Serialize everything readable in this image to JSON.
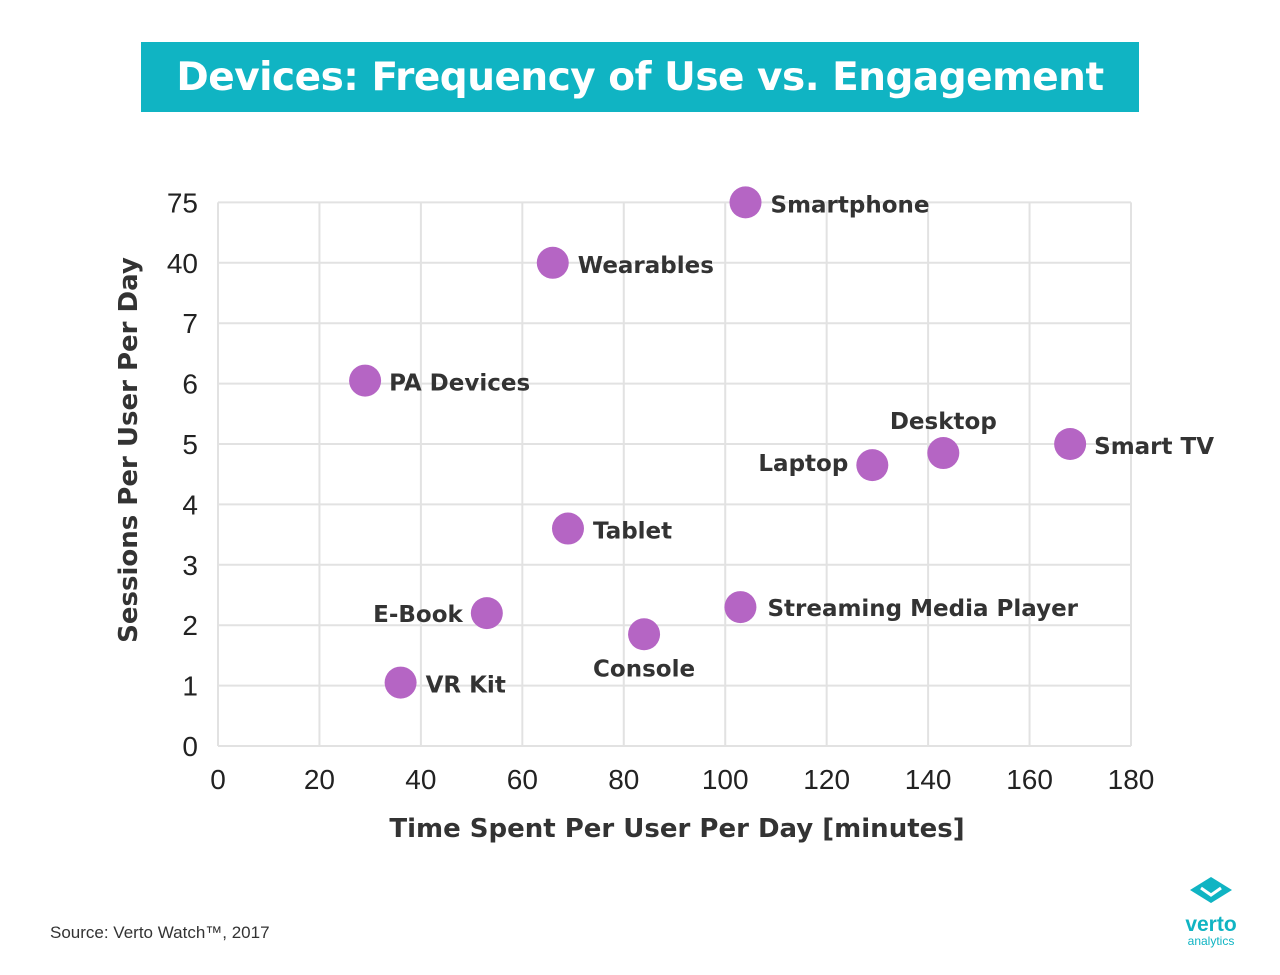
{
  "title": "Devices: Frequency of Use vs. Engagement",
  "source": "Source: Verto Watch™, 2017",
  "logo": {
    "word": "verto",
    "sub": "analytics",
    "icon": "verto-diamond-icon"
  },
  "colors": {
    "banner": "#10b4c3",
    "point": "#b565c4",
    "grid": "#e2e2e2",
    "text": "#333333"
  },
  "chart_data": {
    "type": "scatter",
    "title": "Devices: Frequency of Use vs. Engagement",
    "xlabel": "Time Spent Per User Per Day [minutes]",
    "ylabel": "Sessions Per User Per Day",
    "xlim": [
      0,
      180
    ],
    "x_ticks": [
      "0",
      "20",
      "40",
      "60",
      "80",
      "100",
      "120",
      "140",
      "160",
      "180"
    ],
    "y_ticks": [
      "0",
      "1",
      "2",
      "3",
      "4",
      "5",
      "6",
      "7",
      "40",
      "75"
    ],
    "y_scale": "broken axis: 0–7 linear, then 40 and 75 at one gridline step each",
    "grid": true,
    "points": [
      {
        "label": "Smartphone",
        "x": 104,
        "y": 75
      },
      {
        "label": "Wearables",
        "x": 66,
        "y": 40
      },
      {
        "label": "PA Devices",
        "x": 29,
        "y": 6.05
      },
      {
        "label": "Desktop",
        "x": 143,
        "y": 4.85
      },
      {
        "label": "Laptop",
        "x": 129,
        "y": 4.65
      },
      {
        "label": "Smart TV",
        "x": 168,
        "y": 5.0
      },
      {
        "label": "Tablet",
        "x": 69,
        "y": 3.6
      },
      {
        "label": "Streaming Media Player",
        "x": 103,
        "y": 2.3
      },
      {
        "label": "E-Book",
        "x": 53,
        "y": 2.2
      },
      {
        "label": "Console",
        "x": 84,
        "y": 1.85
      },
      {
        "label": "VR Kit",
        "x": 36,
        "y": 1.05
      }
    ]
  }
}
